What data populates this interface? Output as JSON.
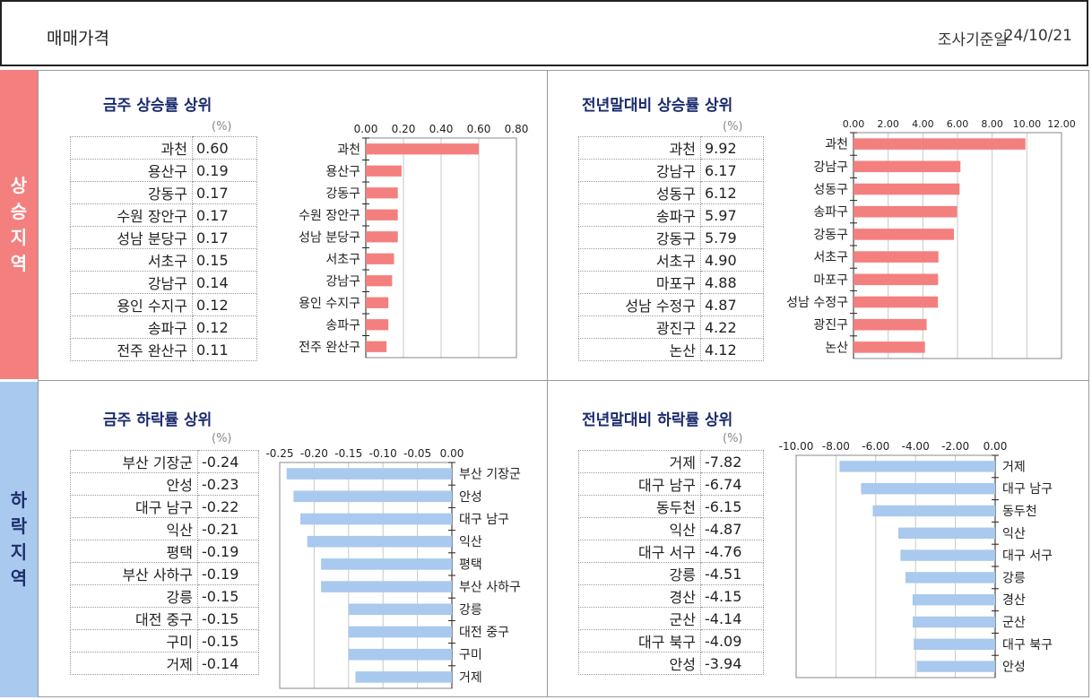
{
  "header": {
    "title": "매매가격",
    "date_label": "조사기준일",
    "date_value": "24/10/21"
  },
  "sidebar": {
    "rise": [
      "상",
      "승",
      "지",
      "역"
    ],
    "fall": [
      "하",
      "락",
      "지",
      "역"
    ]
  },
  "unit": "(%)",
  "colors": {
    "rise_bar": "#f47f7f",
    "fall_bar": "#a9c9ee",
    "rise_side": "#f47f7f",
    "fall_side": "#a9c9ee",
    "title": "#1a2a6c"
  },
  "chart_data": [
    {
      "type": "bar",
      "orientation": "horizontal",
      "title": "금주 상승률 상위",
      "categories": [
        "과천",
        "용산구",
        "강동구",
        "수원 장안구",
        "성남 분당구",
        "서초구",
        "강남구",
        "용인 수지구",
        "송파구",
        "전주 완산구"
      ],
      "values": [
        0.6,
        0.19,
        0.17,
        0.17,
        0.17,
        0.15,
        0.14,
        0.12,
        0.12,
        0.11
      ],
      "value_labels": [
        "0.60",
        "0.19",
        "0.17",
        "0.17",
        "0.17",
        "0.15",
        "0.14",
        "0.12",
        "0.12",
        "0.11"
      ],
      "xlim": [
        0,
        0.8
      ],
      "ticks": [
        0,
        0.2,
        0.4,
        0.6,
        0.8
      ],
      "tick_labels": [
        "0.00",
        "0.20",
        "0.40",
        "0.60",
        "0.80"
      ],
      "grid": true,
      "legend": "none"
    },
    {
      "type": "bar",
      "orientation": "horizontal",
      "title": "전년말대비 상승률 상위",
      "categories": [
        "과천",
        "강남구",
        "성동구",
        "송파구",
        "강동구",
        "서초구",
        "마포구",
        "성남 수정구",
        "광진구",
        "논산"
      ],
      "values": [
        9.92,
        6.17,
        6.12,
        5.97,
        5.79,
        4.9,
        4.88,
        4.87,
        4.22,
        4.12
      ],
      "value_labels": [
        "9.92",
        "6.17",
        "6.12",
        "5.97",
        "5.79",
        "4.90",
        "4.88",
        "4.87",
        "4.22",
        "4.12"
      ],
      "xlim": [
        0,
        12
      ],
      "ticks": [
        0,
        2,
        4,
        6,
        8,
        10,
        12
      ],
      "tick_labels": [
        "0.00",
        "2.00",
        "4.00",
        "6.00",
        "8.00",
        "10.00",
        "12.00"
      ],
      "grid": true,
      "legend": "none"
    },
    {
      "type": "bar",
      "orientation": "horizontal",
      "title": "금주 하락률 상위",
      "categories": [
        "부산 기장군",
        "안성",
        "대구 남구",
        "익산",
        "평택",
        "부산 사하구",
        "강릉",
        "대전 중구",
        "구미",
        "거제"
      ],
      "values": [
        -0.24,
        -0.23,
        -0.22,
        -0.21,
        -0.19,
        -0.19,
        -0.15,
        -0.15,
        -0.15,
        -0.14
      ],
      "value_labels": [
        "-0.24",
        "-0.23",
        "-0.22",
        "-0.21",
        "-0.19",
        "-0.19",
        "-0.15",
        "-0.15",
        "-0.15",
        "-0.14"
      ],
      "xlim": [
        -0.25,
        0
      ],
      "ticks": [
        -0.25,
        -0.2,
        -0.15,
        -0.1,
        -0.05,
        0
      ],
      "tick_labels": [
        "-0.25",
        "-0.20",
        "-0.15",
        "-0.10",
        "-0.05",
        "0.00"
      ],
      "grid": true,
      "legend": "none"
    },
    {
      "type": "bar",
      "orientation": "horizontal",
      "title": "전년말대비 하락률 상위",
      "categories": [
        "거제",
        "대구 남구",
        "동두천",
        "익산",
        "대구 서구",
        "강릉",
        "경산",
        "군산",
        "대구 북구",
        "안성"
      ],
      "values": [
        -7.82,
        -6.74,
        -6.15,
        -4.87,
        -4.76,
        -4.51,
        -4.15,
        -4.14,
        -4.09,
        -3.94
      ],
      "value_labels": [
        "-7.82",
        "-6.74",
        "-6.15",
        "-4.87",
        "-4.76",
        "-4.51",
        "-4.15",
        "-4.14",
        "-4.09",
        "-3.94"
      ],
      "xlim": [
        -10,
        0
      ],
      "ticks": [
        -10,
        -8,
        -6,
        -4,
        -2,
        0
      ],
      "tick_labels": [
        "-10.00",
        "-8.00",
        "-6.00",
        "-4.00",
        "-2.00",
        "0.00"
      ],
      "grid": true,
      "legend": "none"
    }
  ]
}
